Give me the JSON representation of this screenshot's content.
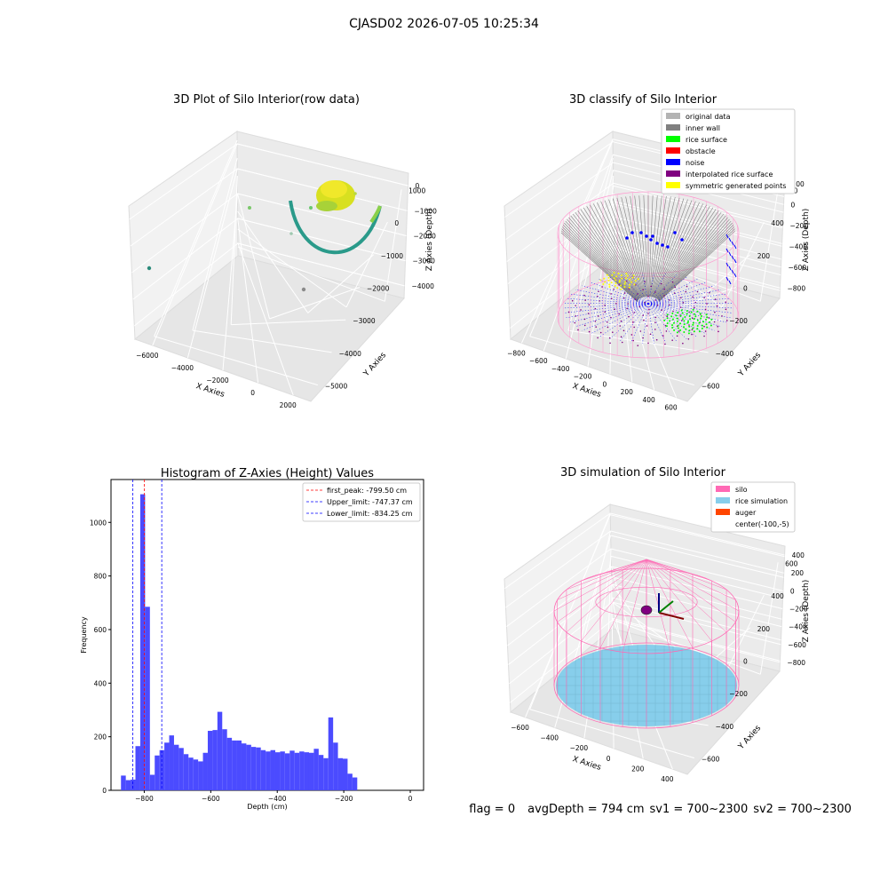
{
  "suptitle": "CJASD02 2026-07-05 10:25:34",
  "footer": {
    "flag": "flag = 0",
    "avg_depth": "avgDepth = 794 cm",
    "sv1": "sv1 = 700~2300",
    "sv2": "sv2 = 700~2300"
  },
  "colors": {
    "histogram_bar": "#4b4bff",
    "first_peak_line": "#ff0000",
    "limit_lines": "#0000ff",
    "original_data": "#b3b3b3",
    "inner_wall": "#808080",
    "rice_surface": "#00ff00",
    "obstacle": "#ff0000",
    "noise": "#0000ff",
    "interpolated_rice_surface": "#800080",
    "symmetric_generated_points": "#ffff00",
    "silo": "#ff69b4",
    "rice_simulation": "#87ceeb",
    "auger": "#ff4500"
  },
  "chart_data": [
    {
      "type": "scatter",
      "title": "3D Plot of Silo Interior(row data)",
      "xlabel": "X Axies",
      "ylabel": "Y Axies",
      "zlabel": "Z Axies (Depth)",
      "xticks": [
        "−6000",
        "−4000",
        "−2000",
        "0",
        "2000"
      ],
      "yticks": [
        "1000",
        "0",
        "−1000",
        "−2000",
        "−3000",
        "−4000",
        "−5000"
      ],
      "zticks": [
        "0",
        "−1000",
        "−2000",
        "−3000",
        "−4000"
      ],
      "grid": true
    },
    {
      "type": "scatter",
      "title": "3D classify of Silo Interior",
      "xlabel": "X Axies",
      "ylabel": "Y Axies",
      "zlabel": "Z Axies (Depth)",
      "xticks": [
        "−800",
        "−600",
        "−400",
        "−200",
        "0",
        "200",
        "400",
        "600"
      ],
      "yticks": [
        "600",
        "400",
        "200",
        "0",
        "−200",
        "−400",
        "−600"
      ],
      "zticks": [
        "200",
        "0",
        "−200",
        "−400",
        "−600",
        "−800"
      ],
      "legend_position": "top-right",
      "legend": [
        "original data",
        "inner wall",
        "rice surface",
        "obstacle",
        "noise",
        "interpolated rice surface",
        "symmetric generated points"
      ],
      "grid": true
    },
    {
      "type": "bar",
      "title": "Histogram of Z-Axies (Height) Values",
      "xlabel": "Depth (cm)",
      "ylabel": "Frequency",
      "xlim": [
        -900,
        40
      ],
      "ylim": [
        0,
        1160
      ],
      "xticks": [
        -800,
        -600,
        -400,
        -200,
        0
      ],
      "xtick_labels": [
        "−800",
        "−600",
        "−400",
        "−200",
        "0"
      ],
      "yticks": [
        0,
        200,
        400,
        600,
        800,
        1000
      ],
      "bin_start": -870,
      "bin_width": 14.5,
      "values": [
        55,
        38,
        40,
        165,
        1105,
        685,
        58,
        130,
        150,
        178,
        205,
        170,
        158,
        135,
        122,
        115,
        108,
        140,
        222,
        225,
        293,
        228,
        196,
        186,
        186,
        175,
        170,
        162,
        160,
        150,
        145,
        150,
        142,
        145,
        138,
        148,
        140,
        145,
        142,
        140,
        155,
        132,
        120,
        272,
        178,
        120,
        118,
        62,
        48
      ],
      "vlines": [
        {
          "label": "first_peak: -799.50 cm",
          "x": -799.5,
          "color": "#ff0000"
        },
        {
          "label": "Upper_limit: -747.37 cm",
          "x": -747.37,
          "color": "#0000ff"
        },
        {
          "label": "Lower_limit: -834.25 cm",
          "x": -834.25,
          "color": "#0000ff"
        }
      ],
      "legend_position": "top-right",
      "grid": false
    },
    {
      "type": "scatter",
      "title": "3D simulation of Silo Interior",
      "xlabel": "X Axies",
      "ylabel": "Y Axies",
      "zlabel": "Z Axies (Depth)",
      "xticks": [
        "−600",
        "−400",
        "−200",
        "0",
        "200",
        "400"
      ],
      "yticks": [
        "600",
        "400",
        "200",
        "0",
        "−200",
        "−400",
        "−600"
      ],
      "zticks": [
        "400",
        "200",
        "0",
        "−200",
        "−400",
        "−600",
        "−800"
      ],
      "legend_position": "top-right",
      "legend": [
        "silo",
        "rice simulation",
        "auger",
        "center(-100,-5)"
      ],
      "grid": true
    }
  ]
}
